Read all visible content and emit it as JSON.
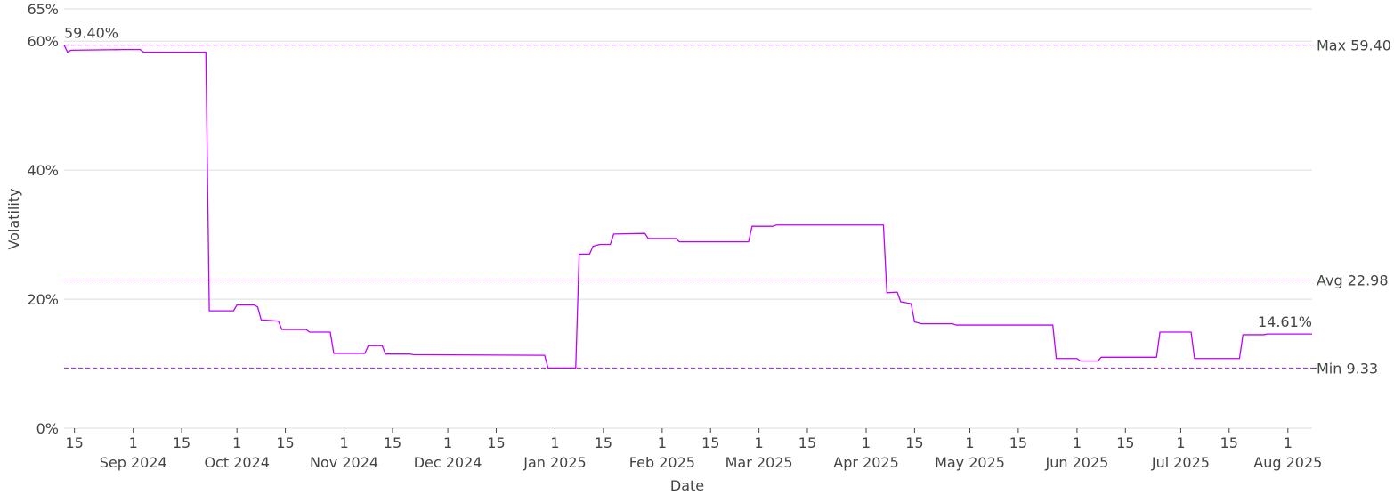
{
  "chart_data": {
    "type": "line",
    "xlabel": "Date",
    "ylabel": "Volatility",
    "xlim": [
      "2024-08-12",
      "2025-08-08"
    ],
    "ylim": [
      0,
      65
    ],
    "grid": true,
    "line_color": "#bf00ff",
    "ref_color": "#a020c0",
    "grid_color": "#dddddd",
    "y_ticks": [
      {
        "value": 0,
        "label": "0%"
      },
      {
        "value": 20,
        "label": "20%"
      },
      {
        "value": 40,
        "label": "40%"
      },
      {
        "value": 60,
        "label": "60%"
      },
      {
        "value": 65,
        "label": "65%"
      }
    ],
    "x_ticks": [
      {
        "date": "2024-08-15",
        "day": "15",
        "month": ""
      },
      {
        "date": "2024-09-01",
        "day": "1",
        "month": "Sep 2024"
      },
      {
        "date": "2024-09-15",
        "day": "15",
        "month": ""
      },
      {
        "date": "2024-10-01",
        "day": "1",
        "month": "Oct 2024"
      },
      {
        "date": "2024-10-15",
        "day": "15",
        "month": ""
      },
      {
        "date": "2024-11-01",
        "day": "1",
        "month": "Nov 2024"
      },
      {
        "date": "2024-11-15",
        "day": "15",
        "month": ""
      },
      {
        "date": "2024-12-01",
        "day": "1",
        "month": "Dec 2024"
      },
      {
        "date": "2024-12-15",
        "day": "15",
        "month": ""
      },
      {
        "date": "2025-01-01",
        "day": "1",
        "month": "Jan 2025"
      },
      {
        "date": "2025-01-15",
        "day": "15",
        "month": ""
      },
      {
        "date": "2025-02-01",
        "day": "1",
        "month": "Feb 2025"
      },
      {
        "date": "2025-02-15",
        "day": "15",
        "month": ""
      },
      {
        "date": "2025-03-01",
        "day": "1",
        "month": "Mar 2025"
      },
      {
        "date": "2025-03-15",
        "day": "15",
        "month": ""
      },
      {
        "date": "2025-04-01",
        "day": "1",
        "month": "Apr 2025"
      },
      {
        "date": "2025-04-15",
        "day": "15",
        "month": ""
      },
      {
        "date": "2025-05-01",
        "day": "1",
        "month": "May 2025"
      },
      {
        "date": "2025-05-15",
        "day": "15",
        "month": ""
      },
      {
        "date": "2025-06-01",
        "day": "1",
        "month": "Jun 2025"
      },
      {
        "date": "2025-06-15",
        "day": "15",
        "month": ""
      },
      {
        "date": "2025-07-01",
        "day": "1",
        "month": "Jul 2025"
      },
      {
        "date": "2025-07-15",
        "day": "15",
        "month": ""
      },
      {
        "date": "2025-08-01",
        "day": "1",
        "month": "Aug 2025"
      }
    ],
    "reference_lines": [
      {
        "name": "max",
        "value": 59.4,
        "label": "Max 59.40"
      },
      {
        "name": "avg",
        "value": 22.98,
        "label": "Avg 22.98"
      },
      {
        "name": "min",
        "value": 9.33,
        "label": "Min 9.33"
      }
    ],
    "annotations": [
      {
        "name": "start-value-label",
        "date": "2024-08-12",
        "value": 59.4,
        "text": "59.40%",
        "anchor": "start"
      },
      {
        "name": "end-value-label",
        "date": "2025-08-08",
        "value": 14.61,
        "text": "14.61%",
        "anchor": "end"
      }
    ],
    "series": [
      {
        "points": [
          [
            "2024-08-12",
            59.4
          ],
          [
            "2024-08-13",
            58.3
          ],
          [
            "2024-08-14",
            58.6
          ],
          [
            "2024-08-29",
            58.7
          ],
          [
            "2024-09-03",
            58.7
          ],
          [
            "2024-09-04",
            58.3
          ],
          [
            "2024-09-22",
            58.3
          ],
          [
            "2024-09-23",
            18.2
          ],
          [
            "2024-09-30",
            18.2
          ],
          [
            "2024-10-01",
            19.1
          ],
          [
            "2024-10-06",
            19.1
          ],
          [
            "2024-10-07",
            18.8
          ],
          [
            "2024-10-08",
            16.8
          ],
          [
            "2024-10-13",
            16.6
          ],
          [
            "2024-10-14",
            15.3
          ],
          [
            "2024-10-21",
            15.3
          ],
          [
            "2024-10-22",
            14.9
          ],
          [
            "2024-10-28",
            14.9
          ],
          [
            "2024-10-29",
            11.6
          ],
          [
            "2024-11-07",
            11.6
          ],
          [
            "2024-11-08",
            12.8
          ],
          [
            "2024-11-12",
            12.8
          ],
          [
            "2024-11-13",
            11.5
          ],
          [
            "2024-11-20",
            11.5
          ],
          [
            "2024-11-21",
            11.4
          ],
          [
            "2024-12-29",
            11.3
          ],
          [
            "2024-12-30",
            9.33
          ],
          [
            "2025-01-07",
            9.33
          ],
          [
            "2025-01-08",
            27.0
          ],
          [
            "2025-01-11",
            27.0
          ],
          [
            "2025-01-12",
            28.2
          ],
          [
            "2025-01-14",
            28.5
          ],
          [
            "2025-01-17",
            28.5
          ],
          [
            "2025-01-18",
            30.1
          ],
          [
            "2025-01-27",
            30.2
          ],
          [
            "2025-01-28",
            29.4
          ],
          [
            "2025-02-05",
            29.4
          ],
          [
            "2025-02-06",
            28.9
          ],
          [
            "2025-02-26",
            28.9
          ],
          [
            "2025-02-27",
            31.3
          ],
          [
            "2025-03-05",
            31.3
          ],
          [
            "2025-03-06",
            31.5
          ],
          [
            "2025-04-06",
            31.5
          ],
          [
            "2025-04-07",
            21.0
          ],
          [
            "2025-04-10",
            21.1
          ],
          [
            "2025-04-11",
            19.6
          ],
          [
            "2025-04-14",
            19.3
          ],
          [
            "2025-04-15",
            16.5
          ],
          [
            "2025-04-17",
            16.2
          ],
          [
            "2025-04-26",
            16.2
          ],
          [
            "2025-04-27",
            16.0
          ],
          [
            "2025-05-25",
            16.0
          ],
          [
            "2025-05-26",
            10.8
          ],
          [
            "2025-06-01",
            10.8
          ],
          [
            "2025-06-02",
            10.4
          ],
          [
            "2025-06-07",
            10.4
          ],
          [
            "2025-06-08",
            11.0
          ],
          [
            "2025-06-24",
            11.0
          ],
          [
            "2025-06-25",
            14.9
          ],
          [
            "2025-07-04",
            14.9
          ],
          [
            "2025-07-05",
            10.8
          ],
          [
            "2025-07-18",
            10.8
          ],
          [
            "2025-07-19",
            14.5
          ],
          [
            "2025-07-25",
            14.5
          ],
          [
            "2025-07-26",
            14.61
          ],
          [
            "2025-08-08",
            14.61
          ]
        ]
      }
    ]
  }
}
